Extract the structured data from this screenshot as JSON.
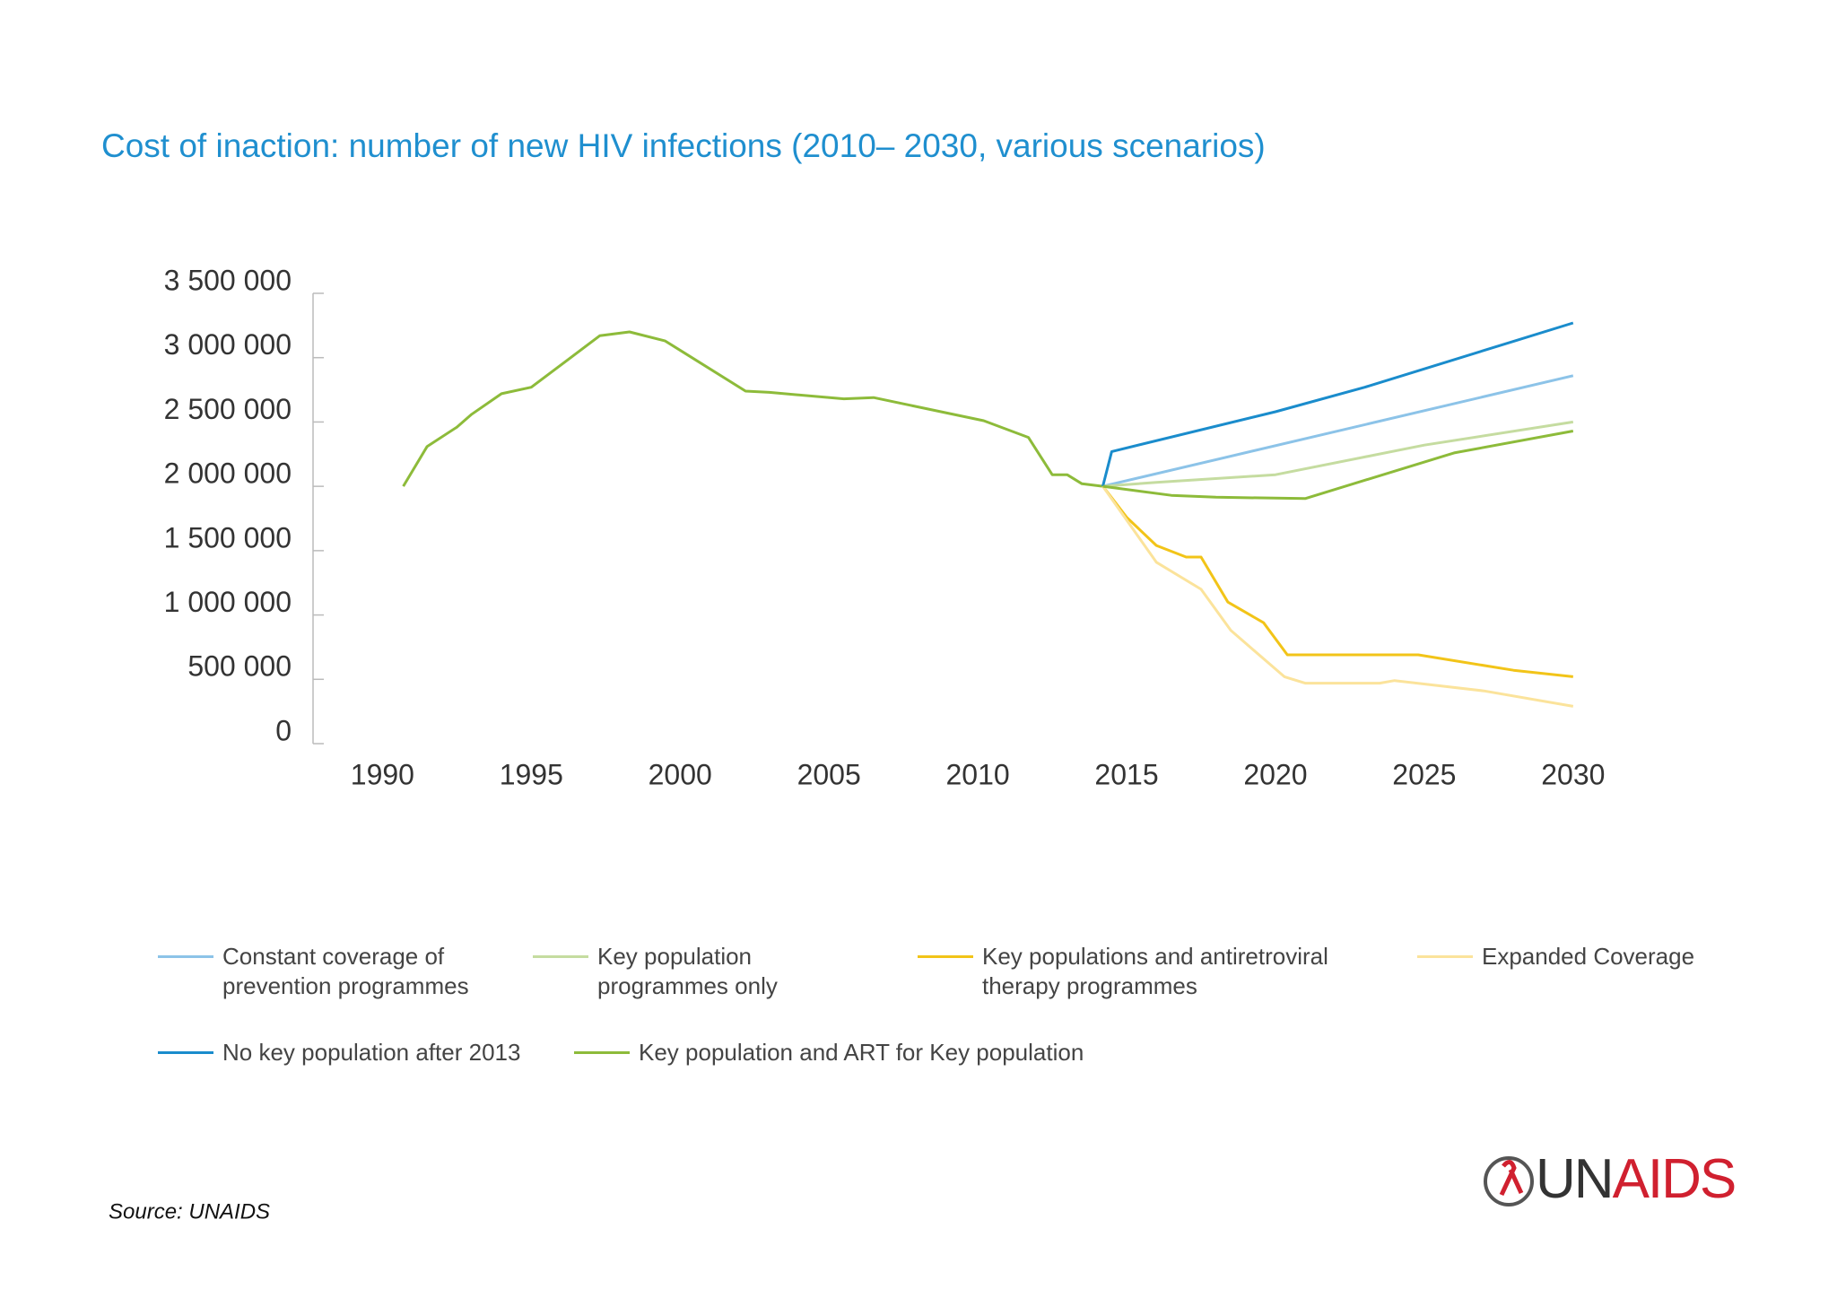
{
  "chart_data": {
    "type": "line",
    "title": "Cost of inaction: number of new HIV infections (2010– 2030, various scenarios)",
    "xlim": [
      1988,
      2031
    ],
    "xticks": [
      1990,
      1995,
      2000,
      2005,
      2010,
      2015,
      2020,
      2025,
      2030
    ],
    "ylim": [
      0,
      3500000
    ],
    "yticks": [
      {
        "value": 0,
        "label": "0"
      },
      {
        "value": 500000,
        "label": "500 000"
      },
      {
        "value": 1000000,
        "label": "1 000 000"
      },
      {
        "value": 1500000,
        "label": "1 500 000"
      },
      {
        "value": 2000000,
        "label": "2 000 000"
      },
      {
        "value": 2500000,
        "label": "2 500 000"
      },
      {
        "value": 3000000,
        "label": "3 000 000"
      },
      {
        "value": 3500000,
        "label": "3 500 000"
      }
    ],
    "history": {
      "color": "#8dbb3a",
      "x": [
        1990.7,
        1991.5,
        1992.5,
        1993,
        1994,
        1995,
        1997.3,
        1998.3,
        1999.5,
        2002.2,
        2003,
        2005.5,
        2006.5,
        2010.2,
        2011.7,
        2012.5,
        2013,
        2013.5,
        2014.2
      ],
      "values": [
        2000000,
        2310000,
        2460000,
        2560000,
        2720000,
        2770000,
        3170000,
        3200000,
        3130000,
        2740000,
        2730000,
        2680000,
        2690000,
        2510000,
        2380000,
        2090000,
        2090000,
        2020000,
        2000000
      ]
    },
    "series": [
      {
        "name": "Constant coverage of prevention programmes",
        "color": "#8cc3e8",
        "x": [
          2014.2,
          2030
        ],
        "values": [
          2000000,
          2860000
        ]
      },
      {
        "name": "Key population programmes only",
        "color": "#c5dca0",
        "x": [
          2014.2,
          2016,
          2020,
          2025,
          2030
        ],
        "values": [
          2000000,
          2030000,
          2090000,
          2320000,
          2500000
        ]
      },
      {
        "name": "Key populations and antiretroviral therapy programmes",
        "color": "#f2c418",
        "x": [
          2014.2,
          2015,
          2016,
          2017,
          2017.5,
          2018.4,
          2019.6,
          2020.4,
          2022,
          2024.8,
          2028,
          2030
        ],
        "values": [
          2000000,
          1760000,
          1540000,
          1450000,
          1450000,
          1100000,
          940000,
          690000,
          690000,
          690000,
          570000,
          520000
        ]
      },
      {
        "name": "Expanded Coverage",
        "color": "#fbe39b",
        "x": [
          2014.2,
          2016,
          2017.5,
          2018.5,
          2020.3,
          2021,
          2023.5,
          2024,
          2027,
          2030
        ],
        "values": [
          2000000,
          1410000,
          1200000,
          880000,
          520000,
          470000,
          470000,
          490000,
          410000,
          290000
        ]
      },
      {
        "name": "No key population after 2013",
        "color": "#1a8ccc",
        "x": [
          2014.2,
          2014.5,
          2020,
          2023,
          2030
        ],
        "values": [
          2000000,
          2270000,
          2580000,
          2770000,
          3270000
        ]
      },
      {
        "name": "Key population and ART for Key population",
        "color": "#8dbb3a",
        "x": [
          2014.2,
          2016.5,
          2018,
          2021,
          2026,
          2030
        ],
        "values": [
          2000000,
          1930000,
          1915000,
          1905000,
          2260000,
          2430000
        ]
      }
    ],
    "source": "Source: UNAIDS",
    "logo": [
      "UN",
      "AIDS"
    ]
  }
}
